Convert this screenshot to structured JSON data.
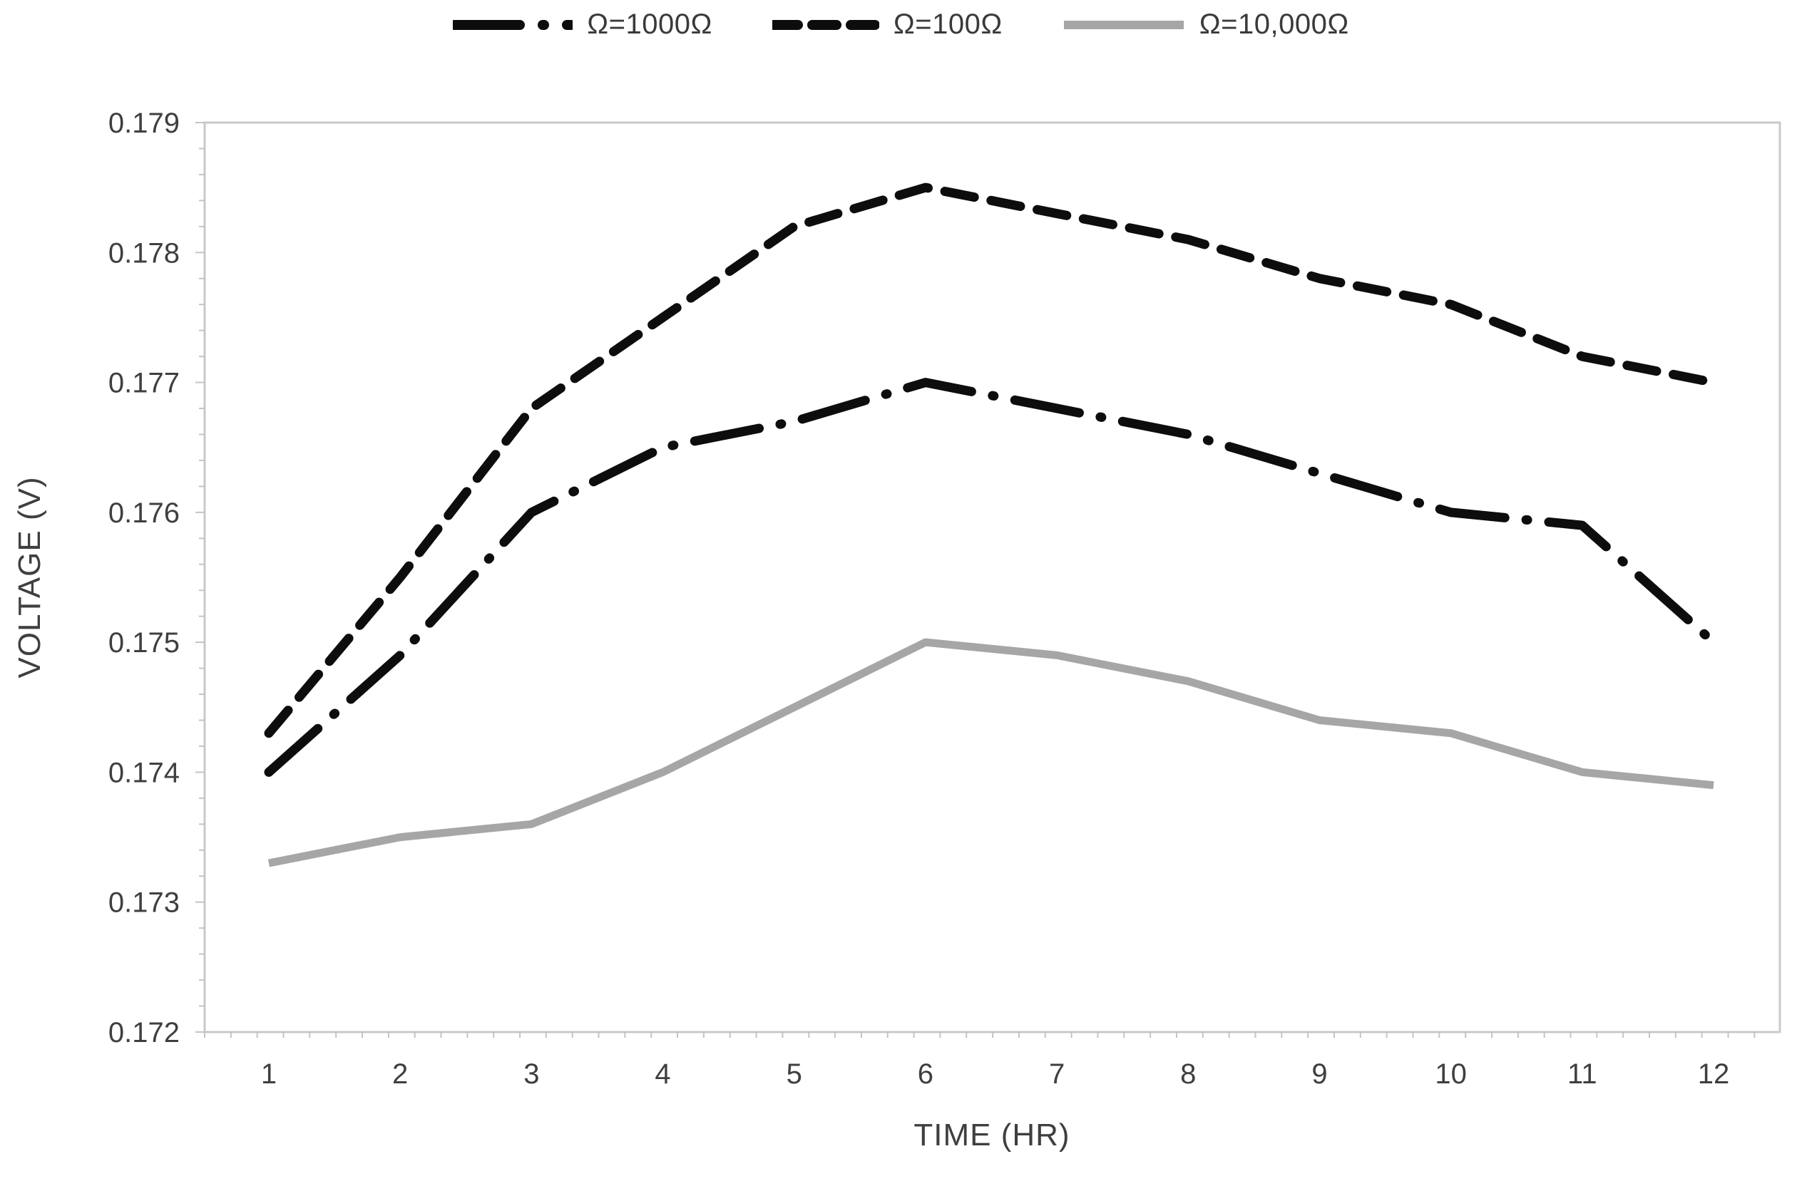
{
  "legend": {
    "items": [
      {
        "series_index": 0
      },
      {
        "series_index": 1
      },
      {
        "series_index": 2
      }
    ]
  },
  "chart_data": {
    "type": "line",
    "title": "",
    "xlabel": "TIME (HR)",
    "ylabel": "VOLTAGE (V)",
    "x": [
      1,
      2,
      3,
      4,
      5,
      6,
      7,
      8,
      9,
      10,
      11,
      12
    ],
    "ylim": [
      0.172,
      0.179
    ],
    "y_tick_step": 0.001,
    "y_tick_decimals": 3,
    "grid": false,
    "legend_position": "top",
    "plot_border_color": "#c9c9c9",
    "tick_color": "#c4c4c4",
    "series": [
      {
        "name": "Ω=1000Ω",
        "style": "dash-dot",
        "color": "#0d0d0d",
        "values": [
          0.174,
          0.1749,
          0.176,
          0.1765,
          0.1767,
          0.177,
          0.1768,
          0.1766,
          0.1763,
          0.176,
          0.1759,
          0.175
        ]
      },
      {
        "name": "Ω=100Ω",
        "style": "dashed",
        "color": "#0d0d0d",
        "values": [
          0.1743,
          0.1755,
          0.1768,
          0.1775,
          0.1782,
          0.1785,
          0.1783,
          0.1781,
          0.1778,
          0.1776,
          0.1772,
          0.177
        ]
      },
      {
        "name": "Ω=10,000Ω",
        "style": "solid",
        "color": "#a6a6a6",
        "values": [
          0.1733,
          0.1735,
          0.1736,
          0.174,
          0.1745,
          0.175,
          0.1749,
          0.1747,
          0.1744,
          0.1743,
          0.174,
          0.1739
        ]
      }
    ]
  }
}
